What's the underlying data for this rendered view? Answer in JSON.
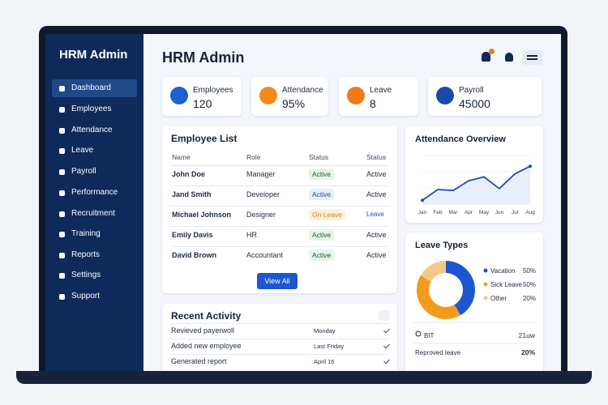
{
  "sidebar": {
    "title": "HRM Admin",
    "menu": [
      "Dashboard",
      "Employees",
      "Attendance",
      "Leave",
      "Payroll",
      "Performance",
      "Recruitment",
      "Training",
      "Reports",
      "Settings",
      "Support"
    ]
  },
  "header": {
    "title": "HRM Admin"
  },
  "stats": [
    {
      "label": "Employees",
      "value": "120",
      "color": "#1f5fd1"
    },
    {
      "label": "Attendance",
      "value": "95%",
      "color": "#f28a1c"
    },
    {
      "label": "Leave",
      "value": "8",
      "color": "#f07a1a"
    },
    {
      "label": "Payroll",
      "value": "45000",
      "color": "#1a4aa8"
    }
  ],
  "employee_list": {
    "title": "Employee List",
    "columns": [
      "Name",
      "Role",
      "Status",
      "Status"
    ],
    "rows": [
      [
        "John Doe",
        "Manager",
        "Active",
        "Active"
      ],
      [
        "Jand Smith",
        "Developer",
        "Active",
        "Active"
      ],
      [
        "Michael Johnson",
        "Designer",
        "On Leave",
        "Leave"
      ],
      [
        "Emily Davis",
        "HR",
        "Active",
        "Active"
      ],
      [
        "David Brown",
        "Accountant",
        "Active",
        "Active"
      ]
    ],
    "button": "View All"
  },
  "recent_activity": {
    "title": "Recent Activity",
    "rows": [
      [
        "Revieved payerwoll",
        "Monday"
      ],
      [
        "Added new employee",
        "Last Friday"
      ],
      [
        "Generated report",
        "April 16"
      ]
    ]
  },
  "leave_footer": [
    [
      "BIT",
      "21uw"
    ],
    [
      "Reproved leave",
      "20%"
    ]
  ],
  "chart_data": [
    {
      "type": "line",
      "title": "Attendance Overview",
      "categories": [
        "Jan",
        "Feb",
        "Mar",
        "Apr",
        "May",
        "Jun",
        "Jul",
        "Aug"
      ],
      "values": [
        8,
        30,
        28,
        48,
        56,
        32,
        62,
        78
      ],
      "ylim": [
        0,
        100
      ],
      "color": "#1c4fb5"
    },
    {
      "type": "pie",
      "title": "Leave Types",
      "categories": [
        "Vacation",
        "Sick Leave",
        "Other"
      ],
      "values": [
        50,
        50,
        20
      ],
      "value_labels": [
        "50%",
        "50%",
        "20%"
      ],
      "colors": [
        "#1c57d0",
        "#f39a1d",
        "#f6c98a"
      ]
    }
  ]
}
